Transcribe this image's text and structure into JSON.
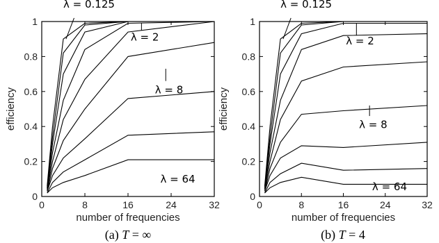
{
  "chart_data": [
    {
      "type": "line",
      "caption_prefix": "(a)",
      "caption_var": "T",
      "caption_rest": " = ∞",
      "xlabel": "number of frequencies",
      "ylabel": "efficiency",
      "xlim": [
        0,
        32
      ],
      "ylim": [
        0,
        1
      ],
      "x_ticks": [
        "0",
        "8",
        "16",
        "24",
        "32"
      ],
      "y_ticks": [
        "0",
        "0.2",
        "0.4",
        "0.6",
        "0.8",
        "1"
      ],
      "x": [
        1,
        2,
        4,
        8,
        16,
        32
      ],
      "series": [
        {
          "values": [
            0.06,
            0.4,
            0.9,
            0.99,
            1.0,
            1.0
          ]
        },
        {
          "values": [
            0.05,
            0.34,
            0.82,
            0.98,
            1.0,
            1.0
          ]
        },
        {
          "values": [
            0.05,
            0.3,
            0.7,
            0.94,
            1.0,
            1.0
          ]
        },
        {
          "values": [
            0.04,
            0.25,
            0.55,
            0.84,
            0.99,
            1.0
          ]
        },
        {
          "values": [
            0.04,
            0.2,
            0.44,
            0.67,
            0.94,
            1.0
          ]
        },
        {
          "values": [
            0.03,
            0.16,
            0.32,
            0.5,
            0.8,
            0.88
          ]
        },
        {
          "values": [
            0.03,
            0.12,
            0.22,
            0.33,
            0.56,
            0.6
          ]
        },
        {
          "values": [
            0.02,
            0.08,
            0.14,
            0.21,
            0.35,
            0.37
          ]
        },
        {
          "values": [
            0.02,
            0.05,
            0.08,
            0.12,
            0.21,
            0.21
          ]
        }
      ],
      "annotations": [
        {
          "text": "λ = 0.125",
          "x": 4,
          "y": 1.08,
          "line": [
            [
              4.5,
              0.9
            ],
            [
              6,
              1.02
            ]
          ]
        },
        {
          "text": "λ = 2",
          "x": 16.5,
          "y": 0.89,
          "line": [
            [
              18.5,
              0.95
            ],
            [
              18.5,
              0.99
            ]
          ]
        },
        {
          "text": "λ = 8",
          "x": 21,
          "y": 0.59,
          "line": [
            [
              23,
              0.66
            ],
            [
              23,
              0.73
            ]
          ]
        },
        {
          "text": "λ = 64",
          "x": 22,
          "y": 0.08,
          "line": []
        }
      ]
    },
    {
      "type": "line",
      "caption_prefix": "(b)",
      "caption_var": "T",
      "caption_rest": " = 4",
      "xlabel": "number of frequencies",
      "ylabel": "efficiency",
      "xlim": [
        0,
        32
      ],
      "ylim": [
        0,
        1
      ],
      "x_ticks": [
        "0",
        "8",
        "16",
        "24",
        "32"
      ],
      "y_ticks": [
        "0",
        "0.2",
        "0.4",
        "0.6",
        "0.8",
        "1"
      ],
      "x": [
        1,
        2,
        4,
        8,
        16,
        32
      ],
      "series": [
        {
          "values": [
            0.06,
            0.4,
            0.9,
            0.99,
            1.0,
            1.0
          ]
        },
        {
          "values": [
            0.05,
            0.34,
            0.82,
            0.98,
            1.0,
            1.0
          ]
        },
        {
          "values": [
            0.05,
            0.3,
            0.7,
            0.93,
            0.99,
            0.99
          ]
        },
        {
          "values": [
            0.04,
            0.25,
            0.55,
            0.84,
            0.92,
            0.93
          ]
        },
        {
          "values": [
            0.04,
            0.2,
            0.44,
            0.66,
            0.74,
            0.77
          ]
        },
        {
          "values": [
            0.03,
            0.16,
            0.31,
            0.47,
            0.49,
            0.52
          ]
        },
        {
          "values": [
            0.03,
            0.12,
            0.22,
            0.29,
            0.28,
            0.31
          ]
        },
        {
          "values": [
            0.02,
            0.08,
            0.13,
            0.19,
            0.15,
            0.16
          ]
        },
        {
          "values": [
            0.02,
            0.05,
            0.08,
            0.11,
            0.07,
            0.07
          ]
        }
      ],
      "annotations": [
        {
          "text": "λ = 0.125",
          "x": 4,
          "y": 1.08,
          "line": [
            [
              4.5,
              0.9
            ],
            [
              6,
              1.02
            ]
          ]
        },
        {
          "text": "λ = 2",
          "x": 16.5,
          "y": 0.87,
          "line": [
            [
              18.5,
              0.92
            ],
            [
              18.5,
              0.99
            ]
          ]
        },
        {
          "text": "λ = 8",
          "x": 19,
          "y": 0.39,
          "line": [
            [
              21,
              0.46
            ],
            [
              21,
              0.52
            ]
          ]
        },
        {
          "text": "λ = 64",
          "x": 21.5,
          "y": 0.035,
          "line": []
        }
      ]
    }
  ]
}
